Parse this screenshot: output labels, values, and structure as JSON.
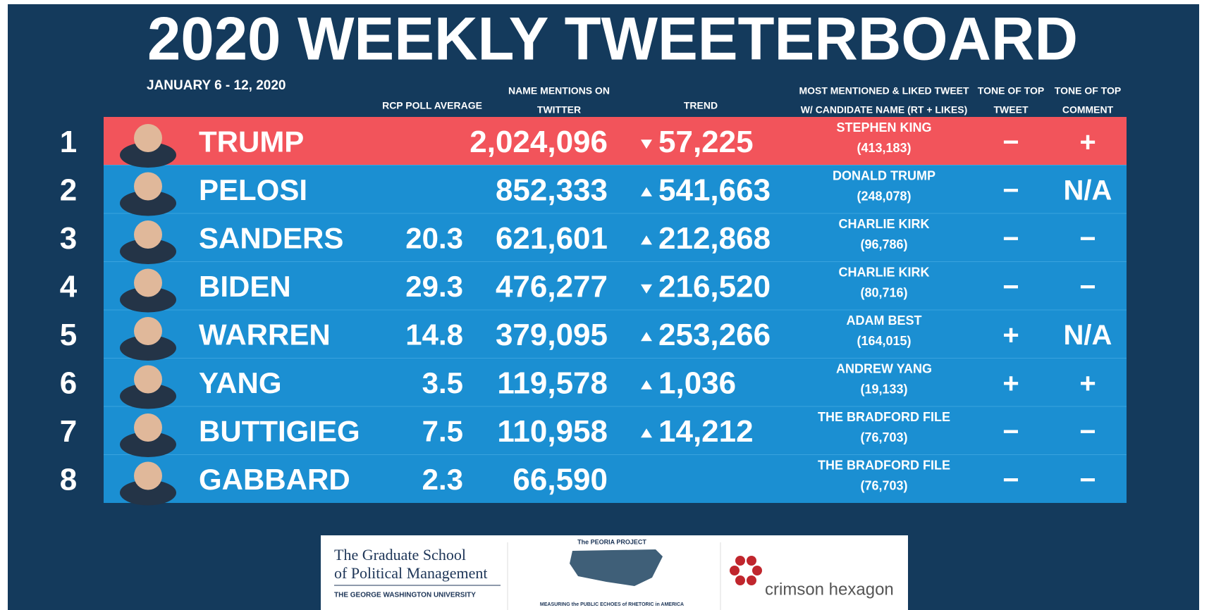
{
  "header": {
    "title": "2020 WEEKLY TWEETERBOARD",
    "date": "JANUARY 6 - 12, 2020"
  },
  "table": {
    "columns": {
      "poll": [
        "RCP POLL AVERAGE"
      ],
      "mentions": [
        "NAME MENTIONS ON",
        "TWITTER"
      ],
      "trend": [
        "TREND"
      ],
      "tweet": [
        "MOST MENTIONED & LIKED TWEET",
        "W/ CANDIDATE NAME (RT + LIKES)"
      ],
      "tone_tweet": [
        "TONE OF TOP",
        "TWEET"
      ],
      "tone_comment": [
        "TONE OF TOP",
        "COMMENT"
      ]
    },
    "rows": [
      {
        "rank": 1,
        "name": "TRUMP",
        "mentions": "2,024,096",
        "trend": {
          "direction": "down",
          "value": "57,225"
        },
        "tweet": {
          "author": "STEPHEN KING",
          "count": "(413,183)"
        },
        "tone_tweet": "−",
        "tone_comment": "+",
        "highlight": true
      },
      {
        "rank": 2,
        "name": "PELOSI",
        "mentions": "852,333",
        "trend": {
          "direction": "up",
          "value": "541,663"
        },
        "tweet": {
          "author": "DONALD TRUMP",
          "count": "(248,078)"
        },
        "tone_tweet": "−",
        "tone_comment": "N/A"
      },
      {
        "rank": 3,
        "name": "SANDERS",
        "poll": "20.3",
        "mentions": "621,601",
        "trend": {
          "direction": "up",
          "value": "212,868"
        },
        "tweet": {
          "author": "CHARLIE KIRK",
          "count": "(96,786)"
        },
        "tone_tweet": "−",
        "tone_comment": "−"
      },
      {
        "rank": 4,
        "name": "BIDEN",
        "poll": "29.3",
        "mentions": "476,277",
        "trend": {
          "direction": "down",
          "value": "216,520"
        },
        "tweet": {
          "author": "CHARLIE KIRK",
          "count": "(80,716)"
        },
        "tone_tweet": "−",
        "tone_comment": "−"
      },
      {
        "rank": 5,
        "name": "WARREN",
        "poll": "14.8",
        "mentions": "379,095",
        "trend": {
          "direction": "up",
          "value": "253,266"
        },
        "tweet": {
          "author": "ADAM BEST",
          "count": "(164,015)"
        },
        "tone_tweet": "+",
        "tone_comment": "N/A"
      },
      {
        "rank": 6,
        "name": "YANG",
        "poll": "3.5",
        "mentions": "119,578",
        "trend": {
          "direction": "up",
          "value": "1,036"
        },
        "tweet": {
          "author": "ANDREW YANG",
          "count": "(19,133)"
        },
        "tone_tweet": "+",
        "tone_comment": "+"
      },
      {
        "rank": 7,
        "name": "BUTTIGIEG",
        "poll": "7.5",
        "mentions": "110,958",
        "trend": {
          "direction": "up",
          "value": "14,212"
        },
        "tweet": {
          "author": "THE BRADFORD FILE",
          "count": "(76,703)"
        },
        "tone_tweet": "−",
        "tone_comment": "−"
      },
      {
        "rank": 8,
        "name": "GABBARD",
        "poll": "2.3",
        "mentions": "66,590",
        "tweet": {
          "author": "THE BRADFORD FILE",
          "count": "(76,703)"
        },
        "tone_tweet": "−",
        "tone_comment": "−"
      }
    ]
  },
  "logos": {
    "gspm": [
      "The Graduate School",
      "of Political Management"
    ],
    "gwu": "THE GEORGE WASHINGTON UNIVERSITY",
    "peoria": "The PEORIA PROJECT",
    "peoria_tagline": "MEASURING the PUBLIC ECHOES of RHETORIC in AMERICA",
    "crimson": "crimson hexagon"
  }
}
